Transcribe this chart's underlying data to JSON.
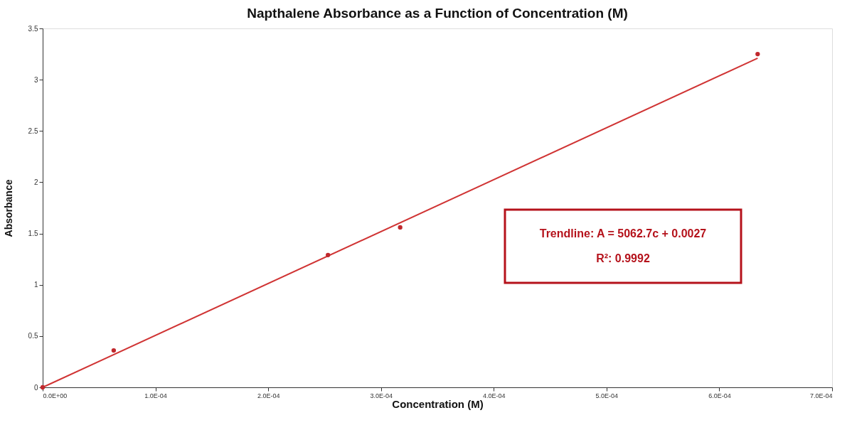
{
  "chart_data": {
    "type": "scatter",
    "title": "Napthalene Absorbance as a Function of Concentration (M)",
    "xlabel": "Concentration (M)",
    "ylabel": "Absorbance",
    "series": [
      {
        "color": "#c0282d",
        "x": [
          0,
          6.3e-05,
          0.000253,
          0.000317,
          0.000634
        ],
        "values": [
          0,
          0.36,
          1.29,
          1.56,
          3.25
        ],
        "marker": "circle"
      },
      {
        "type": "line",
        "color": "#d03434",
        "x": [
          0,
          0.000634
        ],
        "values": [
          0,
          3.21
        ],
        "line_style": "solid"
      }
    ],
    "xlim": [
      0,
      0.0007
    ],
    "xticks": [
      {
        "value": 0,
        "label": "0.0E+00"
      },
      {
        "value": 0.0001,
        "label": "1.0E-04"
      },
      {
        "value": 0.0002,
        "label": "2.0E-04"
      },
      {
        "value": 0.0003,
        "label": "3.0E-04"
      },
      {
        "value": 0.0004,
        "label": "4.0E-04"
      },
      {
        "value": 0.0005,
        "label": "5.0E-04"
      },
      {
        "value": 0.0006,
        "label": "6.0E-04"
      },
      {
        "value": 0.0007,
        "label": "7.0E-04"
      }
    ],
    "ylim": [
      0,
      3.5
    ],
    "yticks": [
      0,
      0.5,
      1,
      1.5,
      2,
      2.5,
      3,
      3.5
    ],
    "annotations": [
      "Trendline: A = 5062.7c + 0.0027",
      "R²: 0.9992"
    ],
    "grid": false
  }
}
